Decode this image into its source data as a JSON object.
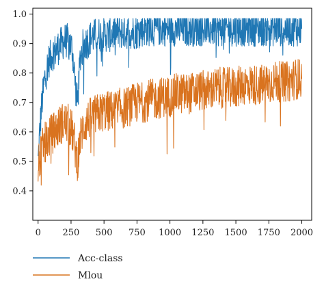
{
  "chart_data": {
    "type": "line",
    "title": "",
    "xlabel": "",
    "ylabel": "",
    "xlim": [
      -40,
      2075
    ],
    "ylim": [
      0.3,
      1.02
    ],
    "x_ticks": [
      0,
      250,
      500,
      750,
      1000,
      1250,
      1500,
      1750,
      2000
    ],
    "y_ticks": [
      0.4,
      0.5,
      0.6,
      0.7,
      0.8,
      0.9,
      1.0
    ],
    "x_tick_labels": [
      "0",
      "250",
      "500",
      "750",
      "1000",
      "1250",
      "1500",
      "1750",
      "2000"
    ],
    "y_tick_labels": [
      "0.4",
      "0.5",
      "0.6",
      "0.7",
      "0.8",
      "0.9",
      "1.0"
    ],
    "grid": false,
    "legend_position": "below-left",
    "series": [
      {
        "name": "Acc-class",
        "color": "#1f77b4",
        "x": [
          0,
          10,
          20,
          30,
          40,
          50,
          60,
          80,
          100,
          120,
          140,
          160,
          180,
          200,
          220,
          240,
          260,
          280,
          290,
          300,
          310,
          320,
          340,
          360,
          380,
          400,
          450,
          500,
          550,
          600,
          650,
          700,
          750,
          800,
          850,
          900,
          950,
          1000,
          1050,
          1100,
          1150,
          1200,
          1250,
          1300,
          1350,
          1400,
          1450,
          1500,
          1550,
          1600,
          1650,
          1700,
          1750,
          1800,
          1850,
          1900,
          1950,
          2000
        ],
        "values": [
          0.5,
          0.58,
          0.65,
          0.7,
          0.74,
          0.78,
          0.8,
          0.84,
          0.86,
          0.87,
          0.88,
          0.89,
          0.9,
          0.91,
          0.91,
          0.9,
          0.88,
          0.78,
          0.72,
          0.7,
          0.78,
          0.85,
          0.89,
          0.9,
          0.91,
          0.92,
          0.93,
          0.93,
          0.93,
          0.94,
          0.94,
          0.94,
          0.94,
          0.95,
          0.95,
          0.95,
          0.95,
          0.95,
          0.95,
          0.95,
          0.95,
          0.95,
          0.95,
          0.95,
          0.95,
          0.95,
          0.95,
          0.95,
          0.95,
          0.95,
          0.95,
          0.95,
          0.95,
          0.95,
          0.95,
          0.95,
          0.95,
          0.95
        ]
      },
      {
        "name": "Mlou",
        "color": "#d9731f",
        "x": [
          0,
          10,
          20,
          30,
          40,
          50,
          60,
          80,
          100,
          120,
          140,
          160,
          180,
          200,
          220,
          240,
          260,
          280,
          290,
          300,
          310,
          320,
          340,
          360,
          380,
          400,
          450,
          500,
          550,
          600,
          650,
          700,
          750,
          800,
          850,
          900,
          950,
          1000,
          1050,
          1100,
          1150,
          1200,
          1250,
          1300,
          1350,
          1400,
          1450,
          1500,
          1550,
          1600,
          1650,
          1700,
          1750,
          1800,
          1850,
          1900,
          1950,
          2000
        ],
        "values": [
          0.48,
          0.5,
          0.52,
          0.54,
          0.55,
          0.56,
          0.57,
          0.58,
          0.59,
          0.6,
          0.61,
          0.62,
          0.63,
          0.63,
          0.63,
          0.62,
          0.6,
          0.55,
          0.52,
          0.5,
          0.54,
          0.58,
          0.61,
          0.63,
          0.64,
          0.65,
          0.66,
          0.67,
          0.67,
          0.68,
          0.68,
          0.69,
          0.7,
          0.7,
          0.71,
          0.71,
          0.72,
          0.72,
          0.73,
          0.73,
          0.73,
          0.74,
          0.74,
          0.74,
          0.75,
          0.75,
          0.75,
          0.75,
          0.76,
          0.76,
          0.76,
          0.76,
          0.77,
          0.77,
          0.77,
          0.77,
          0.78,
          0.78
        ]
      }
    ]
  }
}
